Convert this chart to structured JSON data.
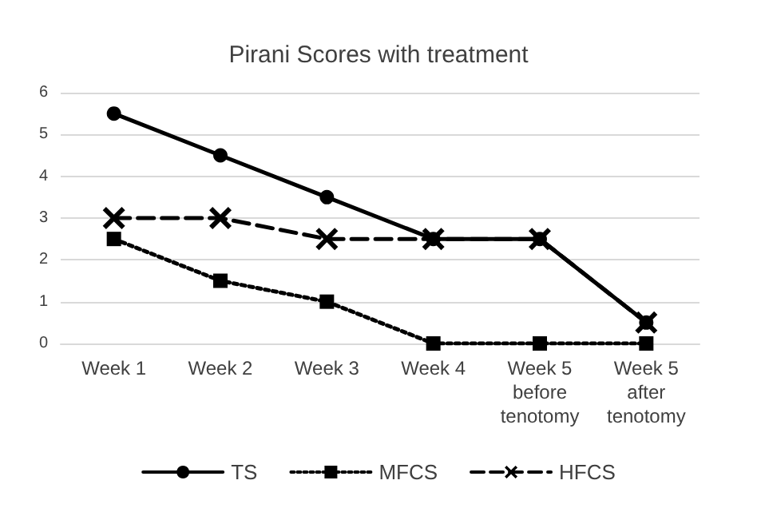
{
  "chart_data": {
    "type": "line",
    "title": "Pirani Scores with treatment",
    "categories": [
      "Week 1",
      "Week 2",
      "Week 3",
      "Week 4",
      "Week 5\nbefore\ntenotomy",
      "Week 5\nafter\ntenotomy"
    ],
    "series": [
      {
        "name": "TS",
        "color": "#000000",
        "marker": "circle",
        "line_style": "solid",
        "values": [
          5.5,
          4.5,
          3.5,
          2.5,
          2.5,
          0.5
        ]
      },
      {
        "name": "MFCS",
        "color": "#000000",
        "marker": "square",
        "line_style": "dotted",
        "values": [
          2.5,
          1.5,
          1,
          0,
          0,
          0
        ]
      },
      {
        "name": "HFCS",
        "color": "#000000",
        "marker": "cross",
        "line_style": "dashed",
        "values": [
          3,
          3,
          2.5,
          2.5,
          2.5,
          0.5
        ]
      }
    ],
    "ylim": [
      0,
      6
    ],
    "yticks": [
      0,
      1,
      2,
      3,
      4,
      5,
      6
    ],
    "grid": "y",
    "legend": "bottom"
  }
}
